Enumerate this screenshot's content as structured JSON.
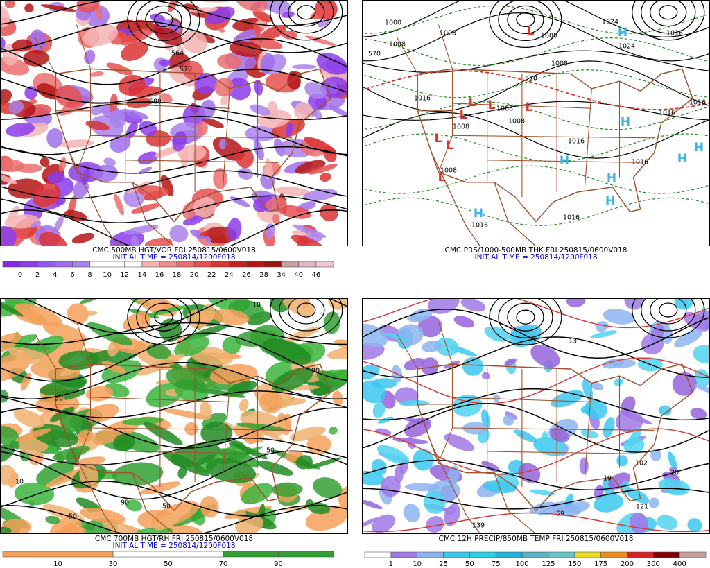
{
  "panels": [
    {
      "caption": "CMC 500MB HGT/VOR FRI 250815/0600V018",
      "initial_time": "INITIAL TIME = 250814/1200F018",
      "contour_labels": [
        "564",
        "570",
        "588"
      ],
      "colorbar": {
        "labels": [
          0,
          2,
          4,
          6,
          8,
          10,
          12,
          14,
          16,
          18,
          20,
          22,
          24,
          26,
          28,
          34,
          40,
          46
        ],
        "colors": [
          "#8228e6",
          "#8c3ceb",
          "#965aeb",
          "#a06eeb",
          "#aa82eb",
          "#ffffff",
          "#ffffff",
          "#ffffff",
          "#f5b4b4",
          "#f08c8c",
          "#eb6e6e",
          "#e65050",
          "#dc3232",
          "#c81e1e",
          "#b41414",
          "#961414",
          "#c8a0a0",
          "#e6b4c8",
          "#f0c8d2"
        ]
      }
    },
    {
      "caption": "CMC PRS/1000-500MB THK FRI 250815/0600V018",
      "initial_time": "INITIAL TIME = 250814/1200F018",
      "centers": [
        "L",
        "L",
        "L",
        "L",
        "L",
        "L",
        "L",
        "L",
        "H",
        "H",
        "H",
        "H",
        "H",
        "H",
        "H",
        "H"
      ],
      "contour_labels": [
        "1000",
        "1008",
        "1008",
        "1000",
        "1024",
        "1024",
        "1016",
        "1008",
        "570",
        "570",
        "1016",
        "1008",
        "1008",
        "1008",
        "1016",
        "1016",
        "1016",
        "1008",
        "1016",
        "1016",
        "1016"
      ]
    },
    {
      "caption": "CMC 700MB HGT/RH FRI 250815/0600V018",
      "initial_time": "INITIAL TIME = 250814/1200F018",
      "contour_labels": [
        "10",
        "50",
        "90",
        "50",
        "10",
        "50",
        "90",
        "50"
      ],
      "colorbar": {
        "labels": [
          10,
          30,
          50,
          70,
          90
        ],
        "colors": [
          "#f5a05a",
          "#f5a05a",
          "#ffffff",
          "#ffffff",
          "#32a032",
          "#32a032"
        ]
      }
    },
    {
      "caption": "CMC 12H PRECIP/850MB TEMP FRI 250815/0600V018",
      "contour_labels": [
        "13",
        "102",
        "121",
        "139",
        "69",
        "19",
        "20"
      ],
      "colorbar": {
        "labels": [
          1,
          10,
          25,
          50,
          75,
          100,
          125,
          150,
          175,
          200,
          300,
          400
        ],
        "colors": [
          "#ffffff",
          "#a078e6",
          "#8cb4f0",
          "#3cc8f0",
          "#28d2e6",
          "#1eb4dc",
          "#5ab4c8",
          "#64c8c8",
          "#f0dc1e",
          "#f08c1e",
          "#dc1e1e",
          "#820000",
          "#c8a0a0"
        ]
      }
    }
  ]
}
